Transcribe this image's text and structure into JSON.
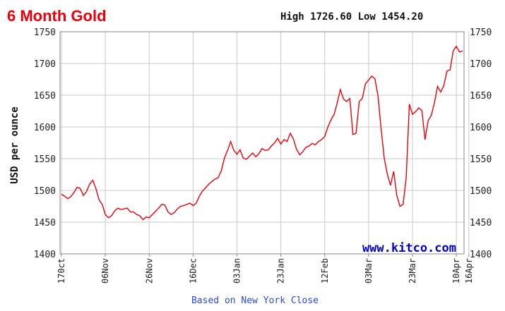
{
  "colors": {
    "title": "#e8000b",
    "series": "#e8000b",
    "grid": "#c8c8c8",
    "axis": "#888888",
    "watermark": "#0000cc",
    "footer": "#2a4bd7",
    "hilo": "#111111"
  },
  "header": {
    "title": "6 Month Gold",
    "high_low": "High 1726.60 Low 1454.20"
  },
  "watermark": "www.kitco.com",
  "footer": "Based on New York Close",
  "chart_data": {
    "type": "line",
    "title": "6 Month Gold",
    "ylabel": "USD per ounce",
    "xlabel": "",
    "ylim": [
      1400,
      1750
    ],
    "yticks": [
      1400,
      1450,
      1500,
      1550,
      1600,
      1650,
      1700,
      1750
    ],
    "ytick_labels": [
      "1400",
      "1450",
      "1500",
      "1550",
      "1600",
      "1650",
      "1700",
      "1750"
    ],
    "grid": true,
    "x_labels": [
      "170ct",
      "06Nov",
      "26Nov",
      "16Dec",
      "03Jan",
      "23Jan",
      "12Feb",
      "03Mar",
      "23Mar",
      "10Apr",
      "16Apr"
    ],
    "x_tick_index": [
      0,
      14,
      28,
      42,
      56,
      70,
      84,
      98,
      112,
      126,
      130
    ],
    "series": [
      {
        "values": [
          1494,
          1491,
          1487,
          1490,
          1497,
          1505,
          1503,
          1492,
          1498,
          1510,
          1516,
          1503,
          1485,
          1478,
          1462,
          1457,
          1460,
          1468,
          1472,
          1470,
          1471,
          1472,
          1466,
          1466,
          1462,
          1460,
          1454,
          1458,
          1457,
          1462,
          1467,
          1472,
          1478,
          1477,
          1466,
          1462,
          1465,
          1471,
          1475,
          1476,
          1478,
          1480,
          1476,
          1480,
          1491,
          1499,
          1504,
          1510,
          1514,
          1518,
          1520,
          1531,
          1551,
          1563,
          1577,
          1563,
          1557,
          1564,
          1551,
          1549,
          1554,
          1559,
          1553,
          1558,
          1566,
          1563,
          1564,
          1570,
          1575,
          1582,
          1573,
          1580,
          1577,
          1590,
          1581,
          1565,
          1556,
          1561,
          1568,
          1570,
          1574,
          1572,
          1577,
          1580,
          1585,
          1600,
          1611,
          1620,
          1638,
          1659,
          1644,
          1640,
          1645,
          1588,
          1590,
          1640,
          1645,
          1668,
          1674,
          1680,
          1676,
          1649,
          1597,
          1550,
          1525,
          1508,
          1530,
          1492,
          1475,
          1478,
          1520,
          1636,
          1620,
          1624,
          1630,
          1626,
          1580,
          1610,
          1618,
          1638,
          1664,
          1655,
          1665,
          1688,
          1690,
          1720,
          1727,
          1718,
          1720
        ]
      }
    ]
  }
}
